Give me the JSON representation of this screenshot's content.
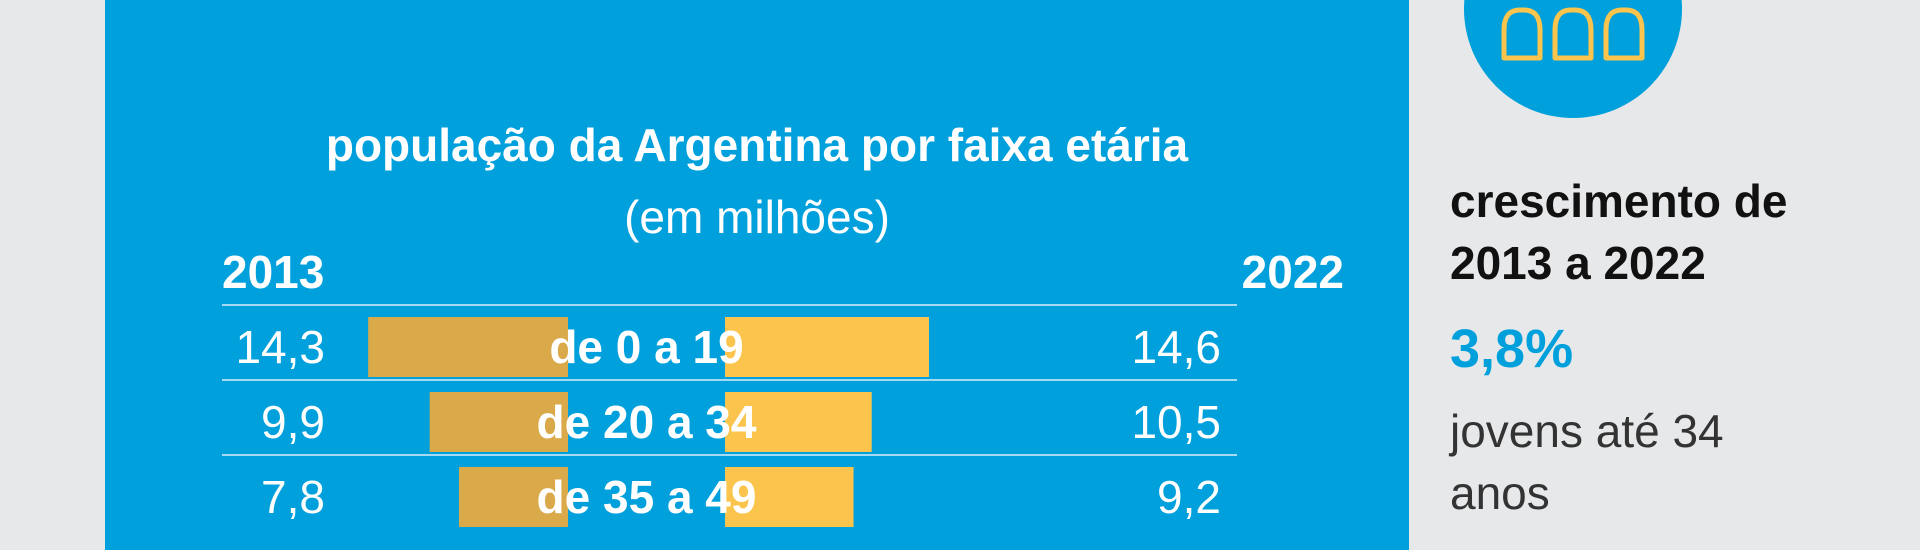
{
  "chart_data": {
    "type": "bar",
    "title": "população da Argentina por faixa etária",
    "subtitle": "(em milhões)",
    "categories": [
      "de 0 a 19",
      "de 20 a 34",
      "de 35 a 49"
    ],
    "series": [
      {
        "name": "2013",
        "values": [
          14.3,
          9.9,
          7.8
        ],
        "labels": [
          "14,3",
          "9,9",
          "7,8"
        ],
        "color": "#d9a94a"
      },
      {
        "name": "2022",
        "values": [
          14.6,
          10.5,
          9.2
        ],
        "labels": [
          "14,6",
          "10,5",
          "9,2"
        ],
        "color": "#fbc54d"
      }
    ],
    "layout": "back-to-back horizontal bars",
    "grid": false
  },
  "sidebar": {
    "icon": "people-silhouettes-icon",
    "heading_line1": "crescimento de",
    "heading_line2": "2013 a 2022",
    "value": "3,8%",
    "desc_line1": "jovens até 34",
    "desc_line2": "anos"
  },
  "colors": {
    "panel": "#00a0dc",
    "background": "#e6e8ea",
    "bar_2013": "#d9a94a",
    "bar_2022": "#fbc54d",
    "accent": "#00a0dc"
  }
}
